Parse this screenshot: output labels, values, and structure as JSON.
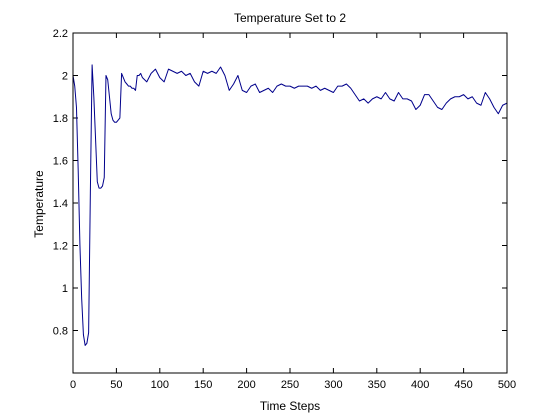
{
  "chart_data": {
    "type": "line",
    "title": "Temperature Set to 2",
    "xlabel": "Time Steps",
    "ylabel": "Temperature",
    "xlim": [
      0,
      500
    ],
    "ylim": [
      0.6,
      2.2
    ],
    "grid": false,
    "legend": "none",
    "xticks": [
      "0",
      "50",
      "100",
      "150",
      "200",
      "250",
      "300",
      "350",
      "400",
      "450",
      "500"
    ],
    "yticks": [
      "0.8",
      "1",
      "1.2",
      "1.4",
      "1.6",
      "1.8",
      "2",
      "2.2"
    ],
    "series": [
      {
        "color": "#00008b",
        "x": [
          0,
          2,
          4,
          6,
          8,
          10,
          12,
          14,
          16,
          18,
          20,
          22,
          24,
          26,
          28,
          30,
          32,
          34,
          36,
          38,
          40,
          42,
          44,
          46,
          48,
          50,
          52,
          54,
          56,
          58,
          60,
          62,
          64,
          66,
          68,
          70,
          72,
          74,
          76,
          78,
          80,
          85,
          90,
          95,
          100,
          105,
          110,
          115,
          120,
          125,
          130,
          135,
          140,
          145,
          150,
          155,
          160,
          165,
          170,
          175,
          180,
          185,
          190,
          195,
          200,
          205,
          210,
          215,
          220,
          225,
          230,
          235,
          240,
          245,
          250,
          255,
          260,
          265,
          270,
          275,
          280,
          285,
          290,
          295,
          300,
          305,
          310,
          315,
          320,
          325,
          330,
          335,
          340,
          345,
          350,
          355,
          360,
          365,
          370,
          375,
          380,
          385,
          390,
          395,
          400,
          405,
          410,
          415,
          420,
          425,
          430,
          435,
          440,
          445,
          450,
          455,
          460,
          465,
          470,
          475,
          480,
          485,
          490,
          495,
          500
        ],
        "values": [
          2.0,
          1.95,
          1.85,
          1.55,
          1.2,
          0.95,
          0.78,
          0.73,
          0.74,
          0.79,
          1.45,
          2.05,
          1.9,
          1.7,
          1.5,
          1.47,
          1.47,
          1.48,
          1.52,
          2.0,
          1.98,
          1.9,
          1.82,
          1.79,
          1.78,
          1.78,
          1.79,
          1.8,
          2.01,
          1.99,
          1.97,
          1.96,
          1.95,
          1.95,
          1.94,
          1.94,
          1.93,
          2.0,
          2.0,
          2.01,
          1.99,
          1.97,
          2.01,
          2.03,
          1.99,
          1.97,
          2.03,
          2.02,
          2.01,
          2.02,
          2.0,
          2.01,
          1.97,
          1.95,
          2.02,
          2.01,
          2.02,
          2.01,
          2.04,
          2.0,
          1.93,
          1.96,
          2.0,
          1.93,
          1.92,
          1.95,
          1.96,
          1.92,
          1.93,
          1.94,
          1.92,
          1.95,
          1.96,
          1.95,
          1.95,
          1.94,
          1.95,
          1.95,
          1.95,
          1.94,
          1.95,
          1.93,
          1.94,
          1.93,
          1.92,
          1.95,
          1.95,
          1.96,
          1.94,
          1.91,
          1.88,
          1.89,
          1.87,
          1.89,
          1.9,
          1.89,
          1.92,
          1.89,
          1.88,
          1.92,
          1.89,
          1.89,
          1.88,
          1.84,
          1.86,
          1.91,
          1.91,
          1.88,
          1.85,
          1.84,
          1.87,
          1.89,
          1.9,
          1.9,
          1.91,
          1.89,
          1.9,
          1.87,
          1.86,
          1.92,
          1.89,
          1.85,
          1.82,
          1.86,
          1.87
        ]
      }
    ]
  }
}
